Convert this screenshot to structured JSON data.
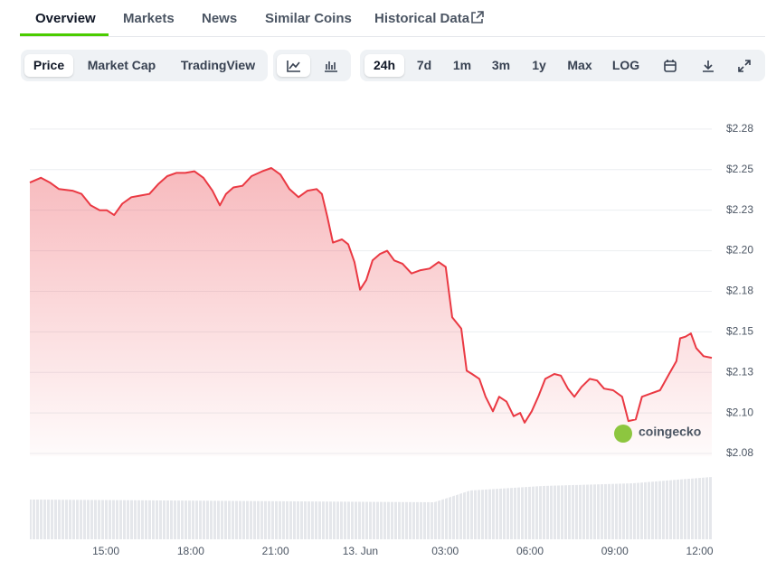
{
  "tabs": [
    "Overview",
    "Markets",
    "News",
    "Similar Coins",
    "Historical Data"
  ],
  "view_buttons": [
    "Price",
    "Market Cap",
    "TradingView"
  ],
  "range_buttons": [
    "24h",
    "7d",
    "1m",
    "3m",
    "1y",
    "Max",
    "LOG"
  ],
  "watermark": "coingecko",
  "chart_data": {
    "type": "line",
    "x": [
      12.31,
      12.7,
      13.02,
      13.34,
      13.82,
      14.14,
      14.46,
      14.78,
      15.03,
      15.29,
      15.58,
      15.9,
      16.22,
      16.54,
      16.85,
      17.17,
      17.49,
      17.81,
      18.13,
      18.45,
      18.77,
      19.03,
      19.25,
      19.51,
      19.83,
      20.15,
      20.53,
      20.85,
      21.17,
      21.49,
      21.81,
      22.13,
      22.45,
      22.64,
      22.83,
      23.03,
      23.35,
      23.57,
      23.79,
      23.99,
      24.21,
      24.43,
      24.69,
      24.95,
      25.2,
      25.49,
      25.81,
      26.13,
      26.45,
      26.77,
      27.02,
      27.25,
      27.57,
      27.76,
      27.95,
      28.21,
      28.43,
      28.69,
      28.91,
      29.17,
      29.42,
      29.65,
      29.81,
      30.06,
      30.29,
      30.54,
      30.86,
      31.09,
      31.34,
      31.57,
      31.82,
      32.11,
      32.37,
      32.62,
      32.94,
      33.26,
      33.48,
      33.74,
      33.96,
      34.28,
      34.6,
      34.92,
      35.18,
      35.31,
      35.5,
      35.69,
      35.88,
      36.14,
      36.43
    ],
    "values": [
      2.242,
      2.245,
      2.242,
      2.238,
      2.237,
      2.235,
      2.228,
      2.225,
      2.225,
      2.222,
      2.229,
      2.233,
      2.234,
      2.235,
      2.241,
      2.246,
      2.248,
      2.248,
      2.249,
      2.245,
      2.237,
      2.228,
      2.235,
      2.239,
      2.24,
      2.246,
      2.249,
      2.251,
      2.247,
      2.238,
      2.233,
      2.237,
      2.238,
      2.235,
      2.221,
      2.205,
      2.207,
      2.204,
      2.193,
      2.176,
      2.182,
      2.194,
      2.198,
      2.2,
      2.194,
      2.192,
      2.186,
      2.188,
      2.189,
      2.193,
      2.19,
      2.159,
      2.152,
      2.126,
      2.124,
      2.121,
      2.11,
      2.101,
      2.11,
      2.107,
      2.098,
      2.1,
      2.094,
      2.101,
      2.11,
      2.121,
      2.124,
      2.123,
      2.115,
      2.11,
      2.116,
      2.121,
      2.12,
      2.115,
      2.114,
      2.11,
      2.095,
      2.096,
      2.11,
      2.112,
      2.114,
      2.124,
      2.132,
      2.146,
      2.147,
      2.149,
      2.14,
      2.135,
      2.134
    ],
    "color": "#ea3943",
    "xlim": [
      12.31,
      36.43
    ],
    "xticks": [
      {
        "value": 15,
        "label": "15:00"
      },
      {
        "value": 18,
        "label": "18:00"
      },
      {
        "value": 21,
        "label": "21:00"
      },
      {
        "value": 24,
        "label": "13. Jun"
      },
      {
        "value": 27,
        "label": "03:00"
      },
      {
        "value": 30,
        "label": "06:00"
      },
      {
        "value": 33,
        "label": "09:00"
      },
      {
        "value": 36,
        "label": "12:00"
      }
    ],
    "ylim": [
      2.07,
      2.3
    ],
    "yticks": [
      {
        "value": 2.075,
        "label": "$2.08"
      },
      {
        "value": 2.1,
        "label": "$2.10"
      },
      {
        "value": 2.125,
        "label": "$2.13"
      },
      {
        "value": 2.15,
        "label": "$2.15"
      },
      {
        "value": 2.175,
        "label": "$2.18"
      },
      {
        "value": 2.2,
        "label": "$2.20"
      },
      {
        "value": 2.225,
        "label": "$2.23"
      },
      {
        "value": 2.25,
        "label": "$2.25"
      },
      {
        "value": 2.275,
        "label": "$2.28"
      }
    ],
    "grid": true
  }
}
